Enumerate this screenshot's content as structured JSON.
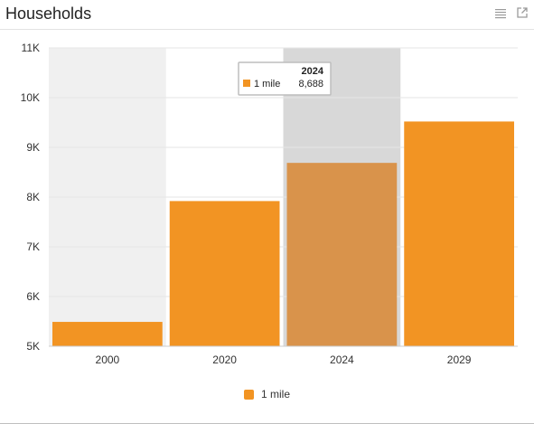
{
  "header": {
    "title": "Households",
    "menu_icon": "list-icon",
    "expand_icon": "external-link-icon"
  },
  "colors": {
    "series": "#f29423",
    "highlight_bar": "#d9934b",
    "shade_band": "#f0f0f0",
    "hover_band": "#d8d8d8"
  },
  "chart_data": {
    "type": "bar",
    "categories": [
      "2000",
      "2020",
      "2024",
      "2029"
    ],
    "series": [
      {
        "name": "1 mile",
        "values": [
          5490,
          7920,
          8688,
          9520
        ]
      }
    ],
    "ylim": [
      5000,
      11000
    ],
    "yticks": [
      5000,
      6000,
      7000,
      8000,
      9000,
      10000,
      11000
    ],
    "ytick_labels": [
      "5K",
      "6K",
      "7K",
      "8K",
      "9K",
      "10K",
      "11K"
    ],
    "grid": true,
    "legend": "bottom-center",
    "tooltip": {
      "category": "2024",
      "series_name": "1 mile",
      "value_label": "8,688"
    }
  }
}
